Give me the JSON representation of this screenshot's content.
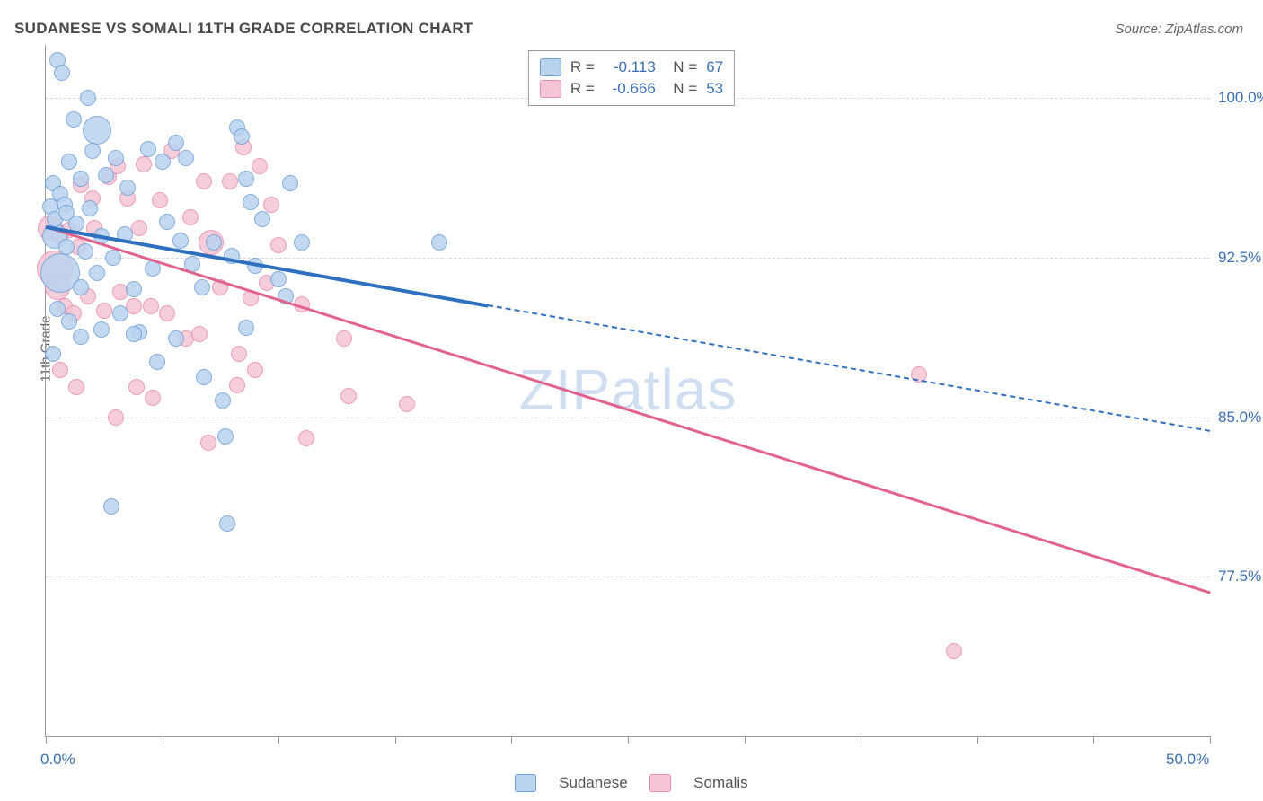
{
  "title": "SUDANESE VS SOMALI 11TH GRADE CORRELATION CHART",
  "source": "Source: ZipAtlas.com",
  "ylabel": "11th Grade",
  "watermark": "ZIPatlas",
  "axes": {
    "x_min": 0.0,
    "x_max": 50.0,
    "y_min": 70.0,
    "y_max": 102.5,
    "x_ticks": [
      0,
      5,
      10,
      15,
      20,
      25,
      30,
      35,
      40,
      45,
      50
    ],
    "x_tick_labels": {
      "0": "0.0%",
      "50": "50.0%"
    },
    "y_ticks": [
      77.5,
      85.0,
      92.5,
      100.0
    ],
    "y_tick_labels": [
      "77.5%",
      "85.0%",
      "92.5%",
      "100.0%"
    ]
  },
  "series": {
    "sudanese": {
      "label": "Sudanese",
      "fill": "#b9d3ef",
      "stroke": "#6f9fd6",
      "line": "#2f6fc0",
      "R": "-0.113",
      "N": "67",
      "marker_r_base": 9,
      "points": [
        [
          0.5,
          101.8
        ],
        [
          0.7,
          101.2
        ],
        [
          1.2,
          99.0
        ],
        [
          1.8,
          100.0
        ],
        [
          2.2,
          98.5,
          16
        ],
        [
          0.3,
          96.0
        ],
        [
          0.6,
          95.5
        ],
        [
          0.8,
          95.0
        ],
        [
          1.0,
          97.0
        ],
        [
          1.5,
          96.2
        ],
        [
          2.0,
          97.5
        ],
        [
          2.6,
          96.4
        ],
        [
          3.0,
          97.2
        ],
        [
          3.5,
          95.8
        ],
        [
          4.4,
          97.6
        ],
        [
          5.0,
          97.0
        ],
        [
          5.6,
          97.9
        ],
        [
          6.0,
          97.2
        ],
        [
          8.2,
          98.6
        ],
        [
          8.4,
          98.2
        ],
        [
          8.6,
          96.2
        ],
        [
          8.8,
          95.1
        ],
        [
          10.5,
          96.0
        ],
        [
          0.4,
          93.5,
          14
        ],
        [
          0.6,
          91.8,
          22
        ],
        [
          0.9,
          93.0
        ],
        [
          1.3,
          94.1
        ],
        [
          1.7,
          92.8
        ],
        [
          2.4,
          93.5
        ],
        [
          3.4,
          93.6
        ],
        [
          5.2,
          94.2
        ],
        [
          5.8,
          93.3
        ],
        [
          6.3,
          92.2
        ],
        [
          6.7,
          91.1
        ],
        [
          7.2,
          93.2
        ],
        [
          8.0,
          92.6
        ],
        [
          8.6,
          89.2
        ],
        [
          9.0,
          92.1
        ],
        [
          10.0,
          91.5
        ],
        [
          10.3,
          90.7
        ],
        [
          11.0,
          93.2
        ],
        [
          16.9,
          93.2
        ],
        [
          1.0,
          89.5
        ],
        [
          1.5,
          88.8
        ],
        [
          2.4,
          89.1
        ],
        [
          3.2,
          89.9
        ],
        [
          4.0,
          89.0
        ],
        [
          4.8,
          87.6
        ],
        [
          5.6,
          88.7
        ],
        [
          6.8,
          86.9
        ],
        [
          7.6,
          85.8
        ],
        [
          7.7,
          84.1
        ],
        [
          2.8,
          80.8
        ],
        [
          7.8,
          80.0
        ],
        [
          0.2,
          94.9
        ],
        [
          0.4,
          94.3
        ],
        [
          0.9,
          94.6
        ],
        [
          1.5,
          91.1
        ],
        [
          2.2,
          91.8
        ],
        [
          2.9,
          92.5
        ],
        [
          3.8,
          91.0
        ],
        [
          4.6,
          92.0
        ],
        [
          0.5,
          90.1
        ],
        [
          0.3,
          88.0
        ],
        [
          1.9,
          94.8
        ],
        [
          9.3,
          94.3
        ],
        [
          3.8,
          88.9
        ]
      ],
      "trend": {
        "x1": 0,
        "y1": 94.0,
        "x2": 19.0,
        "y2": 90.3,
        "ext_x1": 19.0,
        "ext_y1": 90.3,
        "ext_x2": 50.0,
        "ext_y2": 84.4
      }
    },
    "somalis": {
      "label": "Somalis",
      "fill": "#f5c6d5",
      "stroke": "#e98bad",
      "line": "#e2638e",
      "R": "-0.666",
      "N": "53",
      "marker_r_base": 9,
      "points": [
        [
          0.2,
          93.9,
          14
        ],
        [
          0.6,
          93.5
        ],
        [
          1.0,
          93.8
        ],
        [
          1.4,
          93.0
        ],
        [
          0.4,
          92.0,
          20
        ],
        [
          0.5,
          91.1,
          14
        ],
        [
          1.5,
          95.9
        ],
        [
          2.0,
          95.3
        ],
        [
          2.7,
          96.3
        ],
        [
          3.1,
          96.8
        ],
        [
          3.5,
          95.3
        ],
        [
          4.2,
          96.9
        ],
        [
          4.9,
          95.2
        ],
        [
          5.4,
          97.5
        ],
        [
          6.2,
          94.4
        ],
        [
          6.8,
          96.1
        ],
        [
          7.9,
          96.1
        ],
        [
          9.2,
          96.8
        ],
        [
          9.7,
          95.0
        ],
        [
          10.0,
          93.1
        ],
        [
          8.5,
          97.7
        ],
        [
          7.1,
          93.2,
          14
        ],
        [
          0.8,
          90.2
        ],
        [
          1.2,
          89.9
        ],
        [
          1.8,
          90.7
        ],
        [
          2.5,
          90.0
        ],
        [
          3.2,
          90.9
        ],
        [
          3.8,
          90.2
        ],
        [
          4.5,
          90.2
        ],
        [
          5.2,
          89.9
        ],
        [
          6.0,
          88.7
        ],
        [
          6.6,
          88.9
        ],
        [
          7.5,
          91.1
        ],
        [
          8.3,
          88.0
        ],
        [
          8.8,
          90.6
        ],
        [
          9.5,
          91.3
        ],
        [
          11.0,
          90.3
        ],
        [
          8.2,
          86.5
        ],
        [
          9.0,
          87.2
        ],
        [
          3.9,
          86.4
        ],
        [
          4.6,
          85.9
        ],
        [
          12.8,
          88.7
        ],
        [
          13.0,
          86.0
        ],
        [
          15.5,
          85.6
        ],
        [
          0.6,
          87.2
        ],
        [
          1.3,
          86.4
        ],
        [
          3.0,
          85.0
        ],
        [
          11.2,
          84.0
        ],
        [
          7.0,
          83.8
        ],
        [
          37.5,
          87.0
        ],
        [
          39.0,
          74.0
        ],
        [
          2.1,
          93.9
        ],
        [
          4.0,
          93.9
        ]
      ],
      "trend": {
        "x1": 0,
        "y1": 94.0,
        "x2": 50.0,
        "y2": 76.8
      }
    }
  },
  "legend_bottom": [
    "Sudanese",
    "Somalis"
  ],
  "colors": {
    "text_muted": "#666666",
    "axis_value": "#3b6fb6",
    "border": "#9a9a9a",
    "grid": "#d7d7d7",
    "watermark": "#a9c4e4"
  }
}
